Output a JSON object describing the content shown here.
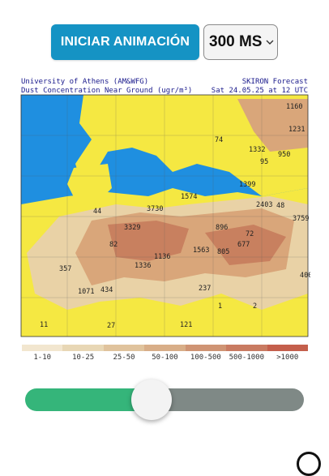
{
  "controls": {
    "play_label": "INICIAR ANIMACIÓN",
    "speed_value": "300 MS",
    "speed_icon": "chevron-down-icon"
  },
  "map": {
    "header_left_1": "University of Athens (AM&WFG)",
    "header_left_2": "Dust Concentration Near Ground (ugr/m³)",
    "header_right_1": "SKIRON Forecast",
    "header_right_2": "Sat 24.05.25 at 12 UTC",
    "labels": [
      "1160",
      "1231",
      "74",
      "1332",
      "950",
      "95",
      "1399",
      "1574",
      "2403",
      "48",
      "3759",
      "44",
      "3730",
      "3329",
      "896",
      "72",
      "82",
      "677",
      "1136",
      "1563",
      "805",
      "357",
      "1336",
      "1071",
      "434",
      "237",
      "400",
      "1",
      "2",
      "11",
      "27",
      "121"
    ],
    "colors": {
      "sea": "#1f8fe0",
      "land": "#f5e842",
      "dust_low": "#e9d2a6",
      "dust_mid": "#d9a67a",
      "dust_high": "#c8805f"
    }
  },
  "legend": {
    "labels": [
      "1-10",
      "10-25",
      "25-50",
      "50-100",
      "100-500",
      "500-1000",
      ">1000"
    ],
    "colors": [
      "#f2e6cf",
      "#e8d7b5",
      "#e0c39d",
      "#d8ae88",
      "#cf9474",
      "#c97b62",
      "#c45f4c"
    ]
  },
  "slider": {
    "progress": 0.45,
    "icon": "play-icon"
  }
}
